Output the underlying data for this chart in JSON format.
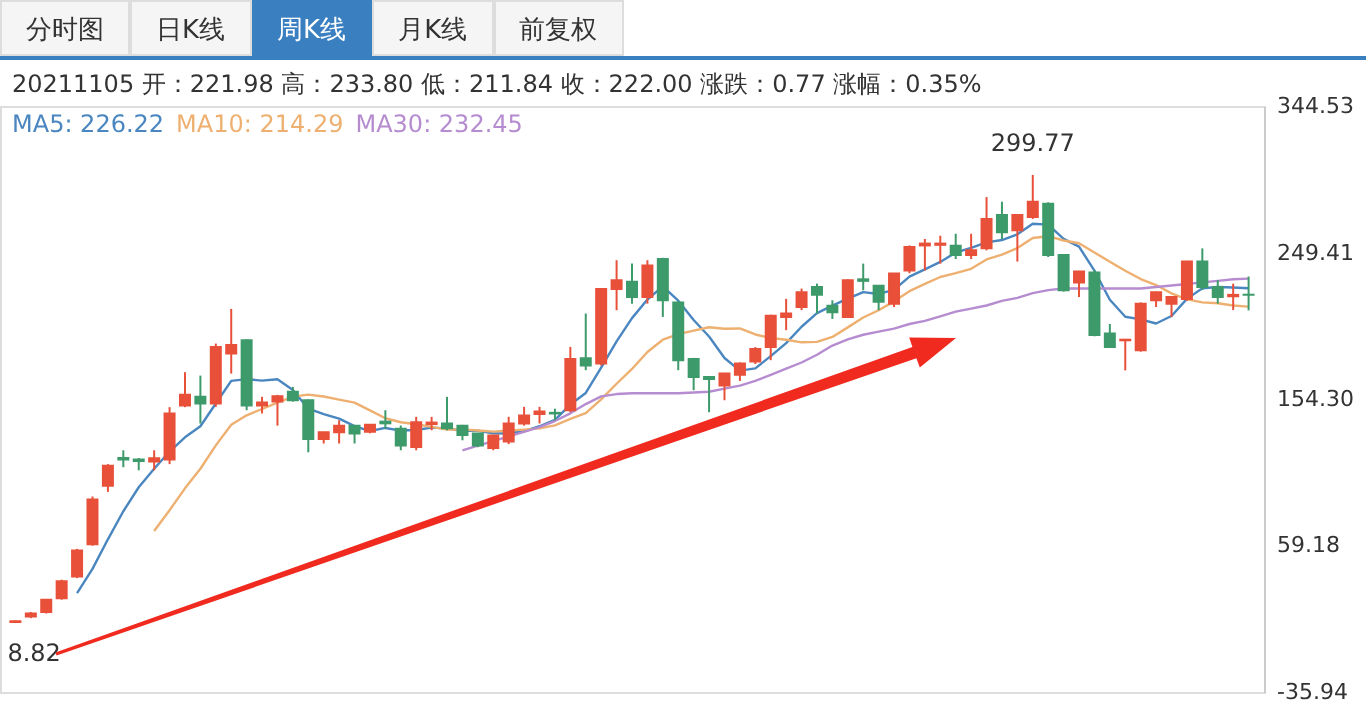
{
  "chart_data": {
    "type": "candlestick",
    "title": "20211105 开：221.98 高：233.80 低：211.84 收：222.00 涨跌：0.77 涨幅：0.35%",
    "annotations": [
      "分时图",
      "日K线",
      "周K线",
      "月K线",
      "前复权",
      {
        "text": "299.77",
        "y": 299.77
      },
      {
        "text": "8.82",
        "y": 8.82
      }
    ],
    "categories": [
      null,
      null,
      null,
      null,
      null,
      null,
      null,
      null,
      null,
      null,
      null,
      null,
      null,
      null,
      null,
      null,
      null,
      null,
      null,
      null,
      null,
      null,
      null,
      null,
      null,
      null,
      null,
      null,
      null,
      null,
      null,
      null,
      null,
      null,
      null,
      null,
      null,
      null,
      null,
      null,
      null,
      null,
      null,
      null,
      null,
      null,
      null,
      null,
      null,
      null,
      null,
      null,
      null,
      null,
      null,
      null,
      null,
      null,
      null,
      null,
      null,
      null,
      null,
      null,
      null,
      null,
      null,
      null,
      null,
      null,
      null,
      null,
      null,
      null,
      null,
      null,
      null,
      null,
      null,
      null,
      null
    ],
    "ohlc": [
      [
        9.5,
        10.5,
        8.82,
        10
      ],
      [
        13,
        16,
        12,
        15
      ],
      [
        16,
        24,
        15,
        24
      ],
      [
        25,
        37,
        24,
        36
      ],
      [
        39,
        57,
        38,
        56
      ],
      [
        60,
        91,
        59,
        89
      ],
      [
        98,
        112,
        94,
        111
      ],
      [
        116,
        121,
        110,
        115
      ],
      [
        115,
        116,
        108,
        114
      ],
      [
        113.7,
        121,
        108,
        115.9
      ],
      [
        115,
        149,
        112,
        144.9
      ],
      [
        150,
        171.7,
        149,
        157
      ],
      [
        155.7,
        169.5,
        138.4,
        151.3
      ],
      [
        151.3,
        190.3,
        149.2,
        188.1
      ],
      [
        183.8,
        212.8,
        170.8,
        189.4
      ],
      [
        192.4,
        193,
        147,
        150
      ],
      [
        150,
        155.7,
        144.9,
        152
      ],
      [
        152.6,
        157,
        137,
        156.1
      ],
      [
        159,
        162.2,
        152.6,
        153.5
      ],
      [
        153.5,
        154,
        119.7,
        128.4
      ],
      [
        128.4,
        133,
        125.4,
        132.7
      ],
      [
        132.7,
        140.5,
        125.4,
        137
      ],
      [
        137,
        137,
        125.4,
        131.9
      ],
      [
        133.1,
        138,
        132,
        137.5
      ],
      [
        139.6,
        147,
        135,
        138.5
      ],
      [
        135,
        137.1,
        121,
        124.1
      ],
      [
        123.2,
        142.7,
        121,
        139.2
      ],
      [
        138,
        142.7,
        134,
        139
      ],
      [
        138.4,
        155.7,
        134,
        135.3
      ],
      [
        137,
        137.5,
        127.5,
        131
      ],
      [
        131.9,
        132,
        123,
        124.1
      ],
      [
        122.4,
        131,
        121,
        130.6
      ],
      [
        126.7,
        142.7,
        125,
        138.4
      ],
      [
        138.4,
        149.2,
        137,
        143.6
      ],
      [
        144.5,
        149.2,
        138.4,
        146.2
      ],
      [
        145.3,
        148,
        140.5,
        144.9
      ],
      [
        147,
        188.1,
        145.7,
        180.3
      ],
      [
        180.8,
        209.8,
        173,
        176
      ],
      [
        177.3,
        226,
        176,
        225.7
      ],
      [
        225.7,
        244.4,
        211.9,
        231.4
      ],
      [
        230.5,
        242.2,
        216.2,
        220.5
      ],
      [
        220.5,
        244.4,
        216.2,
        240.9
      ],
      [
        245.2,
        246,
        207.6,
        218.4
      ],
      [
        217,
        218,
        173,
        179.5
      ],
      [
        180.3,
        181,
        160,
        168.6
      ],
      [
        168.6,
        169,
        145.7,
        167.3
      ],
      [
        163,
        171,
        153.5,
        170.8
      ],
      [
        170,
        178,
        166,
        177.3
      ],
      [
        178.6,
        188,
        177,
        186.8
      ],
      [
        188.1,
        209,
        179.5,
        208.4
      ],
      [
        207.6,
        219.3,
        199,
        209.8
      ],
      [
        214,
        226,
        212,
        223.6
      ],
      [
        227,
        229.2,
        209.8,
        221.9
      ],
      [
        214.9,
        218.4,
        206.3,
        210.6
      ],
      [
        207.6,
        232,
        207,
        231.4
      ],
      [
        232,
        242.2,
        224.9,
        231
      ],
      [
        227.9,
        228,
        212,
        217.5
      ],
      [
        216.2,
        236,
        214,
        235.7
      ],
      [
        237.8,
        254,
        236,
        253
      ],
      [
        254,
        258.2,
        237.8,
        255.2
      ],
      [
        254.4,
        260.3,
        242.2,
        255.2
      ],
      [
        253.8,
        261.6,
        245.2,
        247.8
      ],
      [
        247.8,
        261.6,
        245.2,
        250.8
      ],
      [
        252.1,
        285.4,
        250.8,
        271.2
      ],
      [
        273.7,
        282.4,
        258.2,
        262.5
      ],
      [
        263.8,
        274,
        243.5,
        273.7
      ],
      [
        272.5,
        299.77,
        271.2,
        282.4
      ],
      [
        281.1,
        282,
        246.5,
        247.8
      ],
      [
        247.8,
        248,
        224,
        224.9
      ],
      [
        230,
        237.5,
        220.5,
        237
      ],
      [
        236.5,
        238,
        195,
        195.9
      ],
      [
        196.8,
        203,
        188,
        188.1
      ],
      [
        192.4,
        193.3,
        172.9,
        192.8
      ],
      [
        186,
        217,
        185,
        216.2
      ],
      [
        218.4,
        224,
        214,
        223.6
      ],
      [
        216.2,
        221,
        207.6,
        220.5
      ],
      [
        219.3,
        244,
        218,
        243.5
      ],
      [
        243.5,
        252.1,
        225,
        227
      ],
      [
        227,
        231.4,
        216.2,
        220.5
      ],
      [
        221,
        229.2,
        212,
        221.9
      ],
      [
        221.98,
        233.8,
        211.84,
        222.0
      ]
    ],
    "colors": [
      "#e8503a",
      "#e8503a",
      "#e8503a",
      "#e8503a",
      "#e8503a",
      "#e8503a",
      "#e8503a",
      "#3d9a6a",
      "#3d9a6a",
      "#e8503a",
      "#e8503a",
      "#e8503a",
      "#3d9a6a",
      "#e8503a",
      "#e8503a",
      "#3d9a6a",
      "#e8503a",
      "#e8503a",
      "#3d9a6a",
      "#3d9a6a",
      "#e8503a",
      "#e8503a",
      "#3d9a6a",
      "#e8503a",
      "#3d9a6a",
      "#3d9a6a",
      "#e8503a",
      "#e8503a",
      "#3d9a6a",
      "#3d9a6a",
      "#3d9a6a",
      "#e8503a",
      "#e8503a",
      "#e8503a",
      "#e8503a",
      "#3d9a6a",
      "#e8503a",
      "#3d9a6a",
      "#e8503a",
      "#e8503a",
      "#3d9a6a",
      "#e8503a",
      "#3d9a6a",
      "#3d9a6a",
      "#3d9a6a",
      "#3d9a6a",
      "#e8503a",
      "#e8503a",
      "#e8503a",
      "#e8503a",
      "#e8503a",
      "#e8503a",
      "#3d9a6a",
      "#3d9a6a",
      "#e8503a",
      "#3d9a6a",
      "#3d9a6a",
      "#e8503a",
      "#e8503a",
      "#e8503a",
      "#e8503a",
      "#3d9a6a",
      "#e8503a",
      "#e8503a",
      "#3d9a6a",
      "#e8503a",
      "#e8503a",
      "#3d9a6a",
      "#3d9a6a",
      "#e8503a",
      "#3d9a6a",
      "#3d9a6a",
      "#e8503a",
      "#e8503a",
      "#e8503a",
      "#e8503a",
      "#e8503a",
      "#3d9a6a",
      "#3d9a6a",
      "#e8503a",
      "#3d9a6a"
    ],
    "series": [
      {
        "type": "line",
        "name": "MA5: 226.22",
        "color": "#4a86c0",
        "values": [
          null,
          null,
          null,
          null,
          28.2,
          44,
          63.2,
          81.4,
          97,
          109,
          120.2,
          129.4,
          136.6,
          151.4,
          166.1,
          167.2,
          166.2,
          167.1,
          160.2,
          148,
          144.5,
          141.5,
          136.7,
          133.5,
          135.5,
          133.8,
          134.2,
          135.7,
          135.2,
          133.7,
          133.7,
          132,
          131.9,
          133.5,
          136.6,
          140.7,
          150.7,
          158.2,
          174.6,
          191.7,
          206.8,
          218.9,
          227.4,
          218.1,
          205.6,
          194.9,
          180.9,
          172.7,
          174.2,
          182.1,
          190.6,
          201.2,
          210.1,
          214.9,
          219.5,
          223.7,
          222.5,
          225.2,
          233.7,
          238.5,
          243.3,
          249.4,
          252.4,
          256,
          257.5,
          261.2,
          268.1,
          267.5,
          258.3,
          253.2,
          237.6,
          218.7,
          207.7,
          206,
          203.3,
          208.2,
          219.3,
          226.2,
          227,
          226.7,
          226.22
        ]
      },
      {
        "type": "line",
        "name": "MA10: 214.29",
        "color": "#eeb070",
        "values": [
          null,
          null,
          null,
          null,
          null,
          null,
          null,
          null,
          null,
          68.6,
          82.1,
          96.3,
          109,
          124.2,
          137.6,
          143.7,
          147.8,
          151.9,
          155.8,
          157.1,
          155.9,
          153.9,
          151.9,
          146.9,
          141.8,
          139.2,
          137.9,
          136.2,
          134.4,
          134.6,
          133.8,
          133.1,
          133.8,
          134.4,
          135.2,
          137.2,
          141.4,
          145.1,
          154.1,
          164.2,
          173.8,
          184.8,
          192.8,
          196.4,
          198.7,
          200.9,
          199.9,
          200.1,
          196.2,
          193.9,
          192.8,
          191.1,
          191.4,
          194.6,
          200.8,
          207.2,
          211.9,
          217.7,
          224.3,
          229,
          233.5,
          236,
          238.8,
          244.9,
          248,
          252.3,
          258.8,
          260,
          257.2,
          255.4,
          249.4,
          243.4,
          237.6,
          232.2,
          228.3,
          222.9,
          219,
          217,
          216.5,
          215,
          214.29
        ]
      },
      {
        "type": "line",
        "name": "MA30: 232.45",
        "color": "#b68cd0",
        "values": [
          null,
          null,
          null,
          null,
          null,
          null,
          null,
          null,
          null,
          null,
          null,
          null,
          null,
          null,
          null,
          null,
          null,
          null,
          null,
          null,
          null,
          null,
          null,
          null,
          null,
          null,
          null,
          null,
          null,
          121,
          124,
          127,
          130,
          133,
          136,
          140,
          145,
          151,
          156,
          157.5,
          158,
          158,
          158,
          158,
          158.5,
          159,
          161,
          163,
          166,
          170,
          174,
          178,
          183,
          189,
          193,
          196,
          198,
          200,
          203,
          205,
          208,
          211,
          213,
          215,
          218,
          220,
          223,
          225,
          226,
          226,
          226,
          226,
          226,
          226,
          227,
          228,
          229,
          230,
          231,
          232,
          232.45
        ]
      }
    ],
    "ylim": [
      -35.94,
      344.53
    ],
    "yticks": [
      {
        "value": -35.94,
        "label": "-35.94"
      },
      {
        "value": 59.18,
        "label": "59.18"
      },
      {
        "value": 154.3,
        "label": "154.30"
      },
      {
        "value": 249.41,
        "label": "249.41"
      },
      {
        "value": 344.53,
        "label": "344.53"
      }
    ],
    "tick_labels": "y",
    "legend": "top left"
  }
}
